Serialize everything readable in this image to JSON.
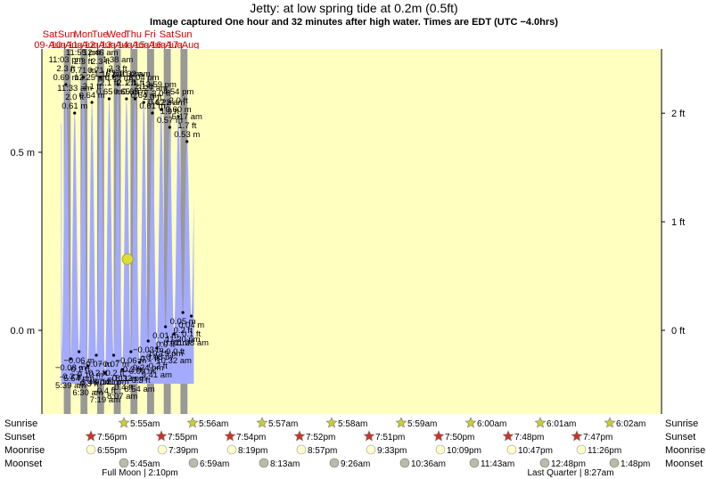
{
  "header": {
    "title": "Jetty: at low  spring tide at 0.2m (0.5ft)",
    "subtitle": "Image captured One hour and 32 minutes after high water. Times are EDT (UTC −4.0hrs)"
  },
  "chart_data": {
    "type": "area",
    "title": "Jetty: at low  spring tide at 0.2m (0.5ft)",
    "y_axis_left": {
      "unit": "m",
      "ticks": [
        {
          "value": 0.0,
          "label": "0.0 m"
        },
        {
          "value": 0.5,
          "label": "0.5 m"
        }
      ],
      "ylim": [
        -0.24,
        0.8
      ]
    },
    "y_axis_right": {
      "unit": "ft",
      "ticks": [
        {
          "value_m": 0.0,
          "label": "0 ft"
        },
        {
          "value_m": 0.3048,
          "label": "1 ft"
        },
        {
          "value_m": 0.6096,
          "label": "2 ft"
        }
      ]
    },
    "x_range_hours": [
      0,
      216
    ],
    "days": [
      {
        "dow": "Sat",
        "date": "09-Aug"
      },
      {
        "dow": "Sun",
        "date": "10-Aug"
      },
      {
        "dow": "Mon",
        "date": "11-Aug"
      },
      {
        "dow": "Tue",
        "date": "12-Aug"
      },
      {
        "dow": "Wed",
        "date": "13-Aug"
      },
      {
        "dow": "Thu",
        "date": "14-Aug"
      },
      {
        "dow": "Fri",
        "date": "15-Aug"
      },
      {
        "dow": "Sat",
        "date": "16-Aug"
      },
      {
        "dow": "Sun",
        "date": "17-Aug"
      }
    ],
    "night_intervals_hours": [
      [
        20.0,
        29.9
      ],
      [
        44.0,
        53.9
      ],
      [
        67.9,
        77.9
      ],
      [
        91.9,
        101.9
      ],
      [
        115.9,
        125.9
      ],
      [
        139.8,
        149.9
      ],
      [
        163.8,
        173.9
      ],
      [
        187.8,
        197.9
      ]
    ],
    "water_color": "#a4abfe",
    "night_color": "#999999",
    "day_color": "#ffffc0",
    "high_tides": [
      {
        "time": "11:03 pm",
        "ft": "2.3 ft",
        "m": "0.69 m",
        "t": 23.05,
        "h": 0.69
      },
      {
        "time": "11:33 am",
        "ft": "2.0 ft",
        "m": "0.61 m",
        "t": 35.55,
        "h": 0.61
      },
      {
        "time": "11:55 pm",
        "ft": "2.3 ft",
        "m": "0.71 m",
        "t": 47.92,
        "h": 0.71
      },
      {
        "time": "12:25 pm",
        "ft": "2.1 ft",
        "m": "0.64 m",
        "t": 60.42,
        "h": 0.64
      },
      {
        "time": "12:46 am",
        "ft": "2.3 ft",
        "m": "0.71 m",
        "t": 72.77,
        "h": 0.71
      },
      {
        "time": "1:16 pm",
        "ft": "2.1 ft",
        "m": "0.65 m",
        "t": 85.27,
        "h": 0.65
      },
      {
        "time": "1:38 am",
        "ft": "2.3 ft",
        "m": "0.69 m",
        "t": 97.63,
        "h": 0.69
      },
      {
        "time": "2:10 pm",
        "ft": "2.1 ft",
        "m": "0.65 m",
        "t": 110.17,
        "h": 0.65
      },
      {
        "time": "2:32 am",
        "ft": "2.1 ft",
        "m": "0.65 m",
        "t": 122.53,
        "h": 0.65
      },
      {
        "time": "3:04 pm",
        "ft": "2.1 ft",
        "m": "0.64 m",
        "t": 135.07,
        "h": 0.64
      },
      {
        "time": "3:27 am",
        "ft": "2.0 ft",
        "m": "0.61 m",
        "t": 147.45,
        "h": 0.61
      },
      {
        "time": "3:59 pm",
        "ft": "2.0 ft",
        "m": "0.62 m",
        "t": 159.98,
        "h": 0.62
      },
      {
        "time": "4:22 am",
        "ft": "1.9 ft",
        "m": "0.57 m",
        "t": 172.37,
        "h": 0.57
      },
      {
        "time": "4:54 pm",
        "ft": "2.0 ft",
        "m": "0.60 m",
        "t": 184.9,
        "h": 0.6
      },
      {
        "time": "5:17 am",
        "ft": "1.7 ft",
        "m": "0.53 m",
        "t": 197.28,
        "h": 0.53
      }
    ],
    "low_tides": [
      {
        "time": "5:39 am",
        "ft": "-0.3 ft",
        "m": "−0.08 m",
        "t": 29.65,
        "h": -0.08
      },
      {
        "time": "5:54 pm",
        "ft": "-0.2 ft",
        "m": "−0.06 m",
        "t": 41.9,
        "h": -0.06
      },
      {
        "time": "6:30 am",
        "ft": "-0.3 ft",
        "m": "−0.10 m",
        "t": 54.5,
        "h": -0.1
      },
      {
        "time": "6:48 pm",
        "ft": "-0.2 ft",
        "m": "−0.07 m",
        "t": 66.8,
        "h": -0.07
      },
      {
        "time": "7:19 am",
        "ft": "-0.4 ft",
        "m": "−0.12 m",
        "t": 79.32,
        "h": -0.12
      },
      {
        "time": "7:41 pm",
        "ft": "-0.2 ft",
        "m": "−0.07 m",
        "t": 91.68,
        "h": -0.07
      },
      {
        "time": "8:07 am",
        "ft": "-0.4 ft",
        "m": "−0.11 m",
        "t": 104.12,
        "h": -0.11
      },
      {
        "time": "8:32 pm",
        "ft": "-0.2 ft",
        "m": "−0.06 m",
        "t": 116.53,
        "h": -0.06
      },
      {
        "time": "8:54 am",
        "ft": "-0.3 ft",
        "m": "−0.09 m",
        "t": 128.9,
        "h": -0.09
      },
      {
        "time": "9:24 pm",
        "ft": "-0.1 ft",
        "m": "−0.03 m",
        "t": 141.4,
        "h": -0.03
      },
      {
        "time": "9:41 am",
        "ft": "-0.2 ft",
        "m": "−0.05 m",
        "t": 153.68,
        "h": -0.05
      },
      {
        "time": "10:19 pm",
        "ft": "0.0 ft",
        "m": "0.01 m",
        "t": 166.32,
        "h": 0.01
      },
      {
        "time": "10:32 am",
        "ft": "-0.0 ft",
        "m": "−0.01 m",
        "t": 178.53,
        "h": -0.01
      },
      {
        "time": "11:20 pm",
        "ft": "0.2 ft",
        "m": "0.05 m",
        "t": 191.33,
        "h": 0.05
      },
      {
        "time": "11:28 am",
        "ft": "0.1 ft",
        "m": "0.04 m",
        "t": 203.47,
        "h": 0.04
      }
    ],
    "current_marker": {
      "t": 111.7,
      "h": 0.2,
      "color": "#dddd33"
    }
  },
  "astro": {
    "row_labels": [
      "Sunrise",
      "Sunset",
      "Moonrise",
      "Moonset"
    ],
    "sunrise": [
      "5:55am",
      "5:56am",
      "5:57am",
      "5:58am",
      "5:59am",
      "6:00am",
      "6:01am",
      "6:02am"
    ],
    "sunset": [
      "7:56pm",
      "7:55pm",
      "7:54pm",
      "7:52pm",
      "7:51pm",
      "7:50pm",
      "7:48pm",
      "7:47pm"
    ],
    "moonrise": [
      "6:55pm",
      "7:39pm",
      "8:19pm",
      "8:57pm",
      "9:33pm",
      "10:09pm",
      "10:47pm",
      "11:26pm"
    ],
    "moonset": [
      "5:45am",
      "6:59am",
      "8:13am",
      "9:26am",
      "10:36am",
      "11:43am",
      "12:48pm",
      "1:48pm"
    ],
    "sunrise_color": "#cccc33",
    "sunset_color": "#cc3322",
    "moonrise_color": "#ffffcc",
    "moonset_color": "#bbbbaa",
    "phases": [
      {
        "label": "Full Moon | 2:10pm"
      },
      {
        "label": "Last Quarter | 8:27am"
      }
    ]
  }
}
